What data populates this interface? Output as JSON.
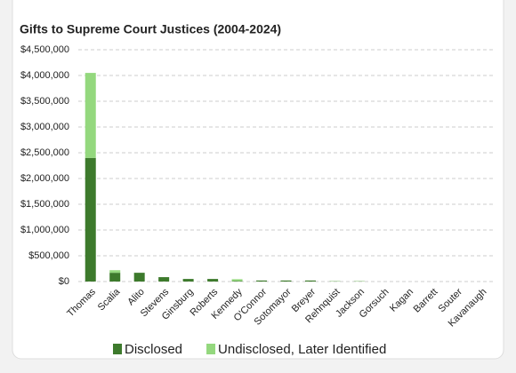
{
  "chart_data": {
    "type": "stacked-bar",
    "title": "Gifts to Supreme Court Justices (2004-2024)",
    "categories": [
      "Thomas",
      "Scalia",
      "Alito",
      "Stevens",
      "Ginsburg",
      "Roberts",
      "Kennedy",
      "O'Connor",
      "Sotomayor",
      "Breyer",
      "Rehnquist",
      "Jackson",
      "Gorsuch",
      "Kagan",
      "Barrett",
      "Souter",
      "Kavanaugh"
    ],
    "series": [
      {
        "name": "Disclosed",
        "color": "#3d7a2c",
        "values": [
          2400000,
          170000,
          170000,
          85000,
          50000,
          50000,
          10000,
          20000,
          20000,
          20000,
          5000,
          5000,
          0,
          0,
          0,
          0,
          0
        ]
      },
      {
        "name": "Undisclosed, Later Identified",
        "color": "#94d87e",
        "values": [
          1650000,
          50000,
          0,
          0,
          0,
          0,
          35000,
          0,
          0,
          0,
          5000,
          5000,
          0,
          0,
          0,
          0,
          0
        ]
      }
    ],
    "ylim": [
      0,
      4500000
    ],
    "yticks": [
      {
        "value": 0,
        "label": "$0"
      },
      {
        "value": 500000,
        "label": "$500,000"
      },
      {
        "value": 1000000,
        "label": "$1,000,000"
      },
      {
        "value": 1500000,
        "label": "$1,500,000"
      },
      {
        "value": 2000000,
        "label": "$2,000,000"
      },
      {
        "value": 2500000,
        "label": "$2,500,000"
      },
      {
        "value": 3000000,
        "label": "$3,000,000"
      },
      {
        "value": 3500000,
        "label": "$3,500,000"
      },
      {
        "value": 4000000,
        "label": "$4,000,000"
      },
      {
        "value": 4500000,
        "label": "$4,500,000"
      }
    ],
    "grid": true
  }
}
